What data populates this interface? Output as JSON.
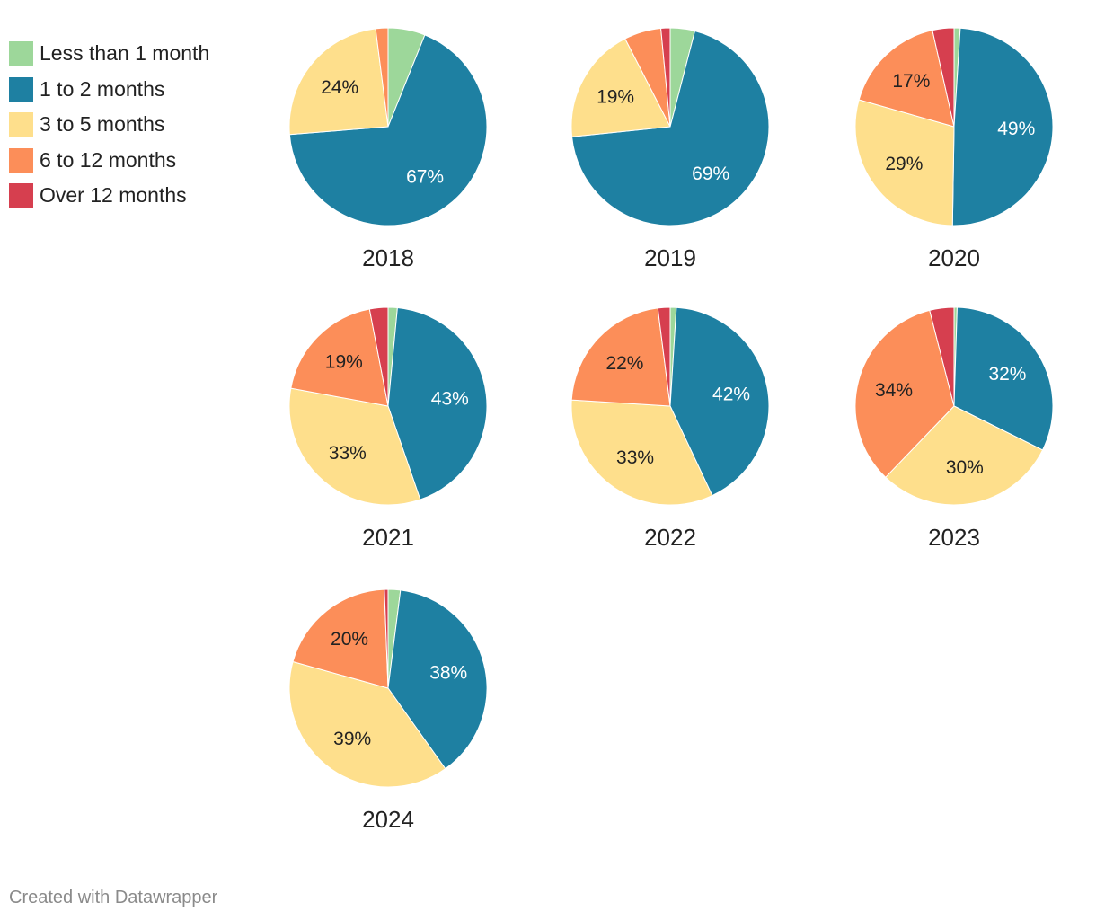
{
  "chart_data": {
    "type": "pie",
    "legend": [
      {
        "label": "Less than 1 month",
        "color": "#9dd79a"
      },
      {
        "label": "1 to 2 months",
        "color": "#1e80a2"
      },
      {
        "label": "3 to 5 months",
        "color": "#fedf8c"
      },
      {
        "label": "6 to 12 months",
        "color": "#fc8e59"
      },
      {
        "label": "Over 12 months",
        "color": "#d63f4f"
      }
    ],
    "pies": [
      {
        "year": "2018",
        "values": [
          6,
          67,
          24,
          2,
          0
        ],
        "labels": [
          "",
          "67%",
          "24%",
          "",
          ""
        ]
      },
      {
        "year": "2019",
        "values": [
          4,
          69,
          19,
          6,
          1.5
        ],
        "labels": [
          "",
          "69%",
          "19%",
          "",
          ""
        ]
      },
      {
        "year": "2020",
        "values": [
          1,
          49,
          29,
          17,
          3.5
        ],
        "labels": [
          "",
          "49%",
          "29%",
          "17%",
          ""
        ]
      },
      {
        "year": "2021",
        "values": [
          1.5,
          43,
          33,
          19,
          3
        ],
        "labels": [
          "",
          "43%",
          "33%",
          "19%",
          ""
        ]
      },
      {
        "year": "2022",
        "values": [
          1,
          42,
          33,
          22,
          2
        ],
        "labels": [
          "",
          "42%",
          "33%",
          "22%",
          ""
        ]
      },
      {
        "year": "2023",
        "values": [
          0.5,
          32,
          30,
          34,
          4
        ],
        "labels": [
          "",
          "32%",
          "30%",
          "34%",
          ""
        ]
      },
      {
        "year": "2024",
        "values": [
          2,
          38,
          39,
          20,
          0.6
        ],
        "labels": [
          "",
          "38%",
          "39%",
          "20%",
          ""
        ]
      }
    ]
  },
  "footer": "Created with Datawrapper"
}
